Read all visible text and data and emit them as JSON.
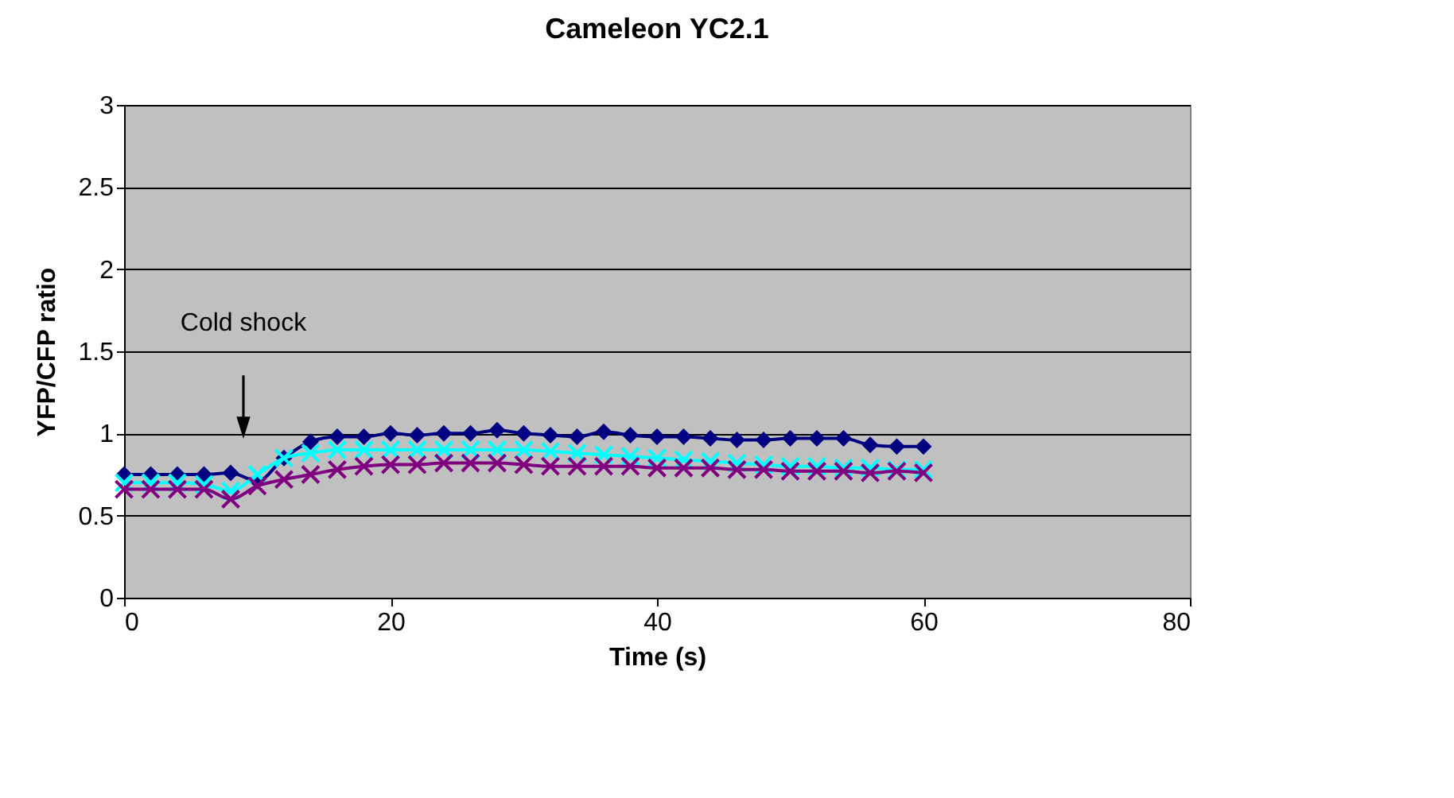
{
  "chart_data": {
    "type": "line",
    "title": "Cameleon YC2.1",
    "xlabel": "Time (s)",
    "ylabel": "YFP/CFP ratio",
    "x": [
      0,
      2,
      4,
      6,
      8,
      10,
      12,
      14,
      16,
      18,
      20,
      22,
      24,
      26,
      28,
      30,
      32,
      34,
      36,
      38,
      40,
      42,
      44,
      46,
      48,
      50,
      52,
      54,
      56,
      58,
      60
    ],
    "series": [
      {
        "color": "#000080",
        "marker": "diamond",
        "values": [
          0.75,
          0.75,
          0.75,
          0.75,
          0.76,
          0.71,
          0.85,
          0.95,
          0.98,
          0.98,
          1.0,
          0.99,
          1.0,
          1.0,
          1.02,
          1.0,
          0.99,
          0.98,
          1.01,
          0.99,
          0.98,
          0.98,
          0.97,
          0.96,
          0.96,
          0.97,
          0.97,
          0.97,
          0.93,
          0.92,
          0.92
        ]
      },
      {
        "color": "#00ffff",
        "marker": "cross",
        "values": [
          0.7,
          0.7,
          0.7,
          0.69,
          0.65,
          0.75,
          0.85,
          0.88,
          0.9,
          0.9,
          0.9,
          0.9,
          0.9,
          0.9,
          0.9,
          0.9,
          0.89,
          0.88,
          0.87,
          0.86,
          0.85,
          0.84,
          0.83,
          0.82,
          0.81,
          0.8,
          0.8,
          0.79,
          0.79,
          0.78,
          0.78
        ]
      },
      {
        "color": "#800080",
        "marker": "cross",
        "values": [
          0.66,
          0.66,
          0.66,
          0.66,
          0.6,
          0.68,
          0.72,
          0.75,
          0.78,
          0.8,
          0.81,
          0.81,
          0.82,
          0.82,
          0.82,
          0.81,
          0.8,
          0.8,
          0.8,
          0.8,
          0.79,
          0.79,
          0.79,
          0.78,
          0.78,
          0.77,
          0.77,
          0.77,
          0.76,
          0.77,
          0.76
        ]
      }
    ],
    "xlim": [
      0,
      80
    ],
    "xticks": [
      0,
      20,
      40,
      60,
      80
    ],
    "ylim": [
      0,
      3
    ],
    "yticks": [
      0,
      0.5,
      1,
      1.5,
      2,
      2.5,
      3
    ],
    "grid": "y",
    "legend": false,
    "annotations": [
      "Cold shock"
    ]
  }
}
